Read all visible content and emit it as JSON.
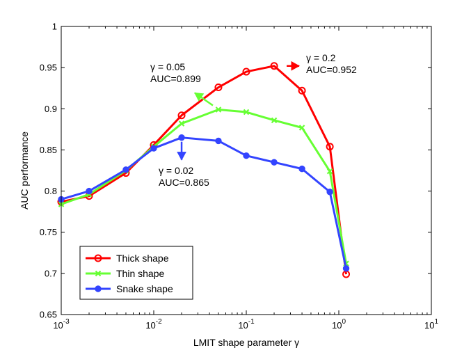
{
  "chart_data": {
    "type": "line",
    "xlabel": "LMIT shape parameter γ",
    "ylabel": "AUC performance",
    "xscale": "log",
    "xlim": [
      0.001,
      10
    ],
    "ylim": [
      0.65,
      1.0
    ],
    "grid": false,
    "legend_position": "bottom-left",
    "x_ticks": [
      {
        "value": 0.001,
        "base": "10",
        "exp": "-3"
      },
      {
        "value": 0.01,
        "base": "10",
        "exp": "-2"
      },
      {
        "value": 0.1,
        "base": "10",
        "exp": "-1"
      },
      {
        "value": 1,
        "base": "10",
        "exp": "0"
      },
      {
        "value": 10,
        "base": "10",
        "exp": "1"
      }
    ],
    "y_ticks": [
      {
        "value": 0.65,
        "label": "0.65"
      },
      {
        "value": 0.7,
        "label": "0.7"
      },
      {
        "value": 0.75,
        "label": "0.75"
      },
      {
        "value": 0.8,
        "label": "0.8"
      },
      {
        "value": 0.85,
        "label": "0.85"
      },
      {
        "value": 0.9,
        "label": "0.9"
      },
      {
        "value": 0.95,
        "label": "0.95"
      },
      {
        "value": 1.0,
        "label": "1"
      }
    ],
    "series": [
      {
        "name": "Thick shape",
        "color": "#ff0000",
        "marker": "circle-open",
        "x": [
          0.001,
          0.002,
          0.005,
          0.01,
          0.02,
          0.05,
          0.1,
          0.2,
          0.4,
          0.8,
          1.2
        ],
        "y": [
          0.787,
          0.794,
          0.822,
          0.856,
          0.892,
          0.926,
          0.945,
          0.952,
          0.922,
          0.854,
          0.699
        ]
      },
      {
        "name": "Thin shape",
        "color": "#66ff33",
        "marker": "x",
        "x": [
          0.001,
          0.002,
          0.005,
          0.01,
          0.02,
          0.05,
          0.1,
          0.2,
          0.4,
          0.8,
          1.2
        ],
        "y": [
          0.784,
          0.796,
          0.825,
          0.854,
          0.882,
          0.899,
          0.896,
          0.886,
          0.877,
          0.824,
          0.712
        ]
      },
      {
        "name": "Snake shape",
        "color": "#3344ff",
        "marker": "circle-filled",
        "x": [
          0.001,
          0.002,
          0.005,
          0.01,
          0.02,
          0.05,
          0.1,
          0.2,
          0.4,
          0.8,
          1.2
        ],
        "y": [
          0.79,
          0.8,
          0.826,
          0.852,
          0.865,
          0.861,
          0.843,
          0.835,
          0.827,
          0.799,
          0.706
        ]
      }
    ],
    "annotations": [
      {
        "series": "Thick shape",
        "line1": "γ = 0.2",
        "line2": "AUC=0.952",
        "arrow": "right"
      },
      {
        "series": "Thin shape",
        "line1": "γ = 0.05",
        "line2": "AUC=0.899",
        "arrow": "up-left"
      },
      {
        "series": "Snake shape",
        "line1": "γ = 0.02",
        "line2": "AUC=0.865",
        "arrow": "down"
      }
    ]
  }
}
